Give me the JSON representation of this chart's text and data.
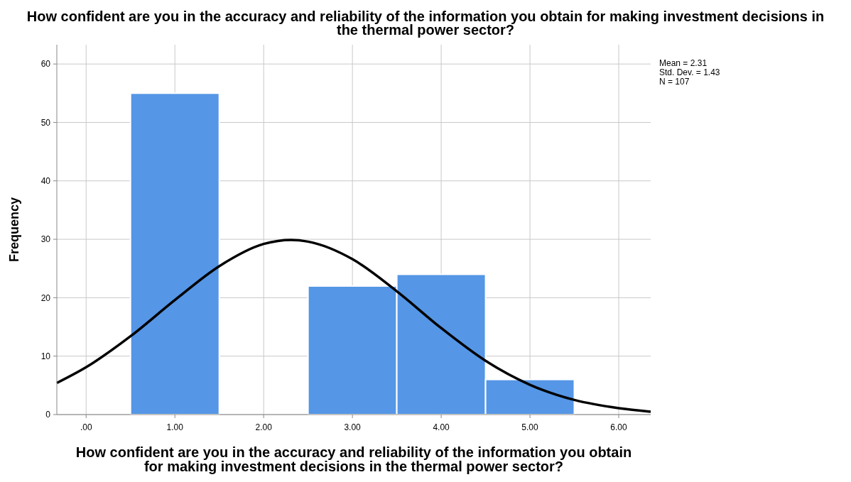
{
  "chart_data": {
    "type": "histogram",
    "title": "How confident are you in the accuracy and reliability of the information you obtain for making investment decisions in the thermal power sector?",
    "xlabel": "How confident are you in the accuracy and reliability of the information you obtain for making investment decisions in the thermal power sector?",
    "ylabel": "Frequency",
    "bins": [
      0.5,
      1.5,
      2.5,
      3.5,
      4.5,
      5.5
    ],
    "values": [
      55,
      0,
      22,
      24,
      6
    ],
    "color": "#5596e6",
    "series": [
      {
        "type": "line",
        "color": "#000000",
        "x": [
          -0.33,
          0,
          0.5,
          1,
          1.5,
          2,
          2.31,
          2.5,
          3,
          3.5,
          4,
          4.5,
          5,
          5.5,
          6,
          6.36
        ],
        "values": [
          5.4,
          8.1,
          13.4,
          19.6,
          25.4,
          29.2,
          29.9,
          29.6,
          26.6,
          21.1,
          14.8,
          9.2,
          5.1,
          2.5,
          1.1,
          0.5
        ]
      }
    ],
    "xlim": [
      -0.33,
      6.36
    ],
    "xticks": [
      {
        "value": 0,
        "label": ".00"
      },
      {
        "value": 1,
        "label": "1.00"
      },
      {
        "value": 2,
        "label": "2.00"
      },
      {
        "value": 3,
        "label": "3.00"
      },
      {
        "value": 4,
        "label": "4.00"
      },
      {
        "value": 5,
        "label": "5.00"
      },
      {
        "value": 6,
        "label": "6.00"
      }
    ],
    "ylim": [
      0,
      63.3
    ],
    "yticks": [
      0,
      10,
      20,
      30,
      40,
      50,
      60
    ],
    "grid": true,
    "annotations": [
      "Mean = 2.31",
      "Std. Dev. = 1.43",
      "N = 107"
    ]
  }
}
